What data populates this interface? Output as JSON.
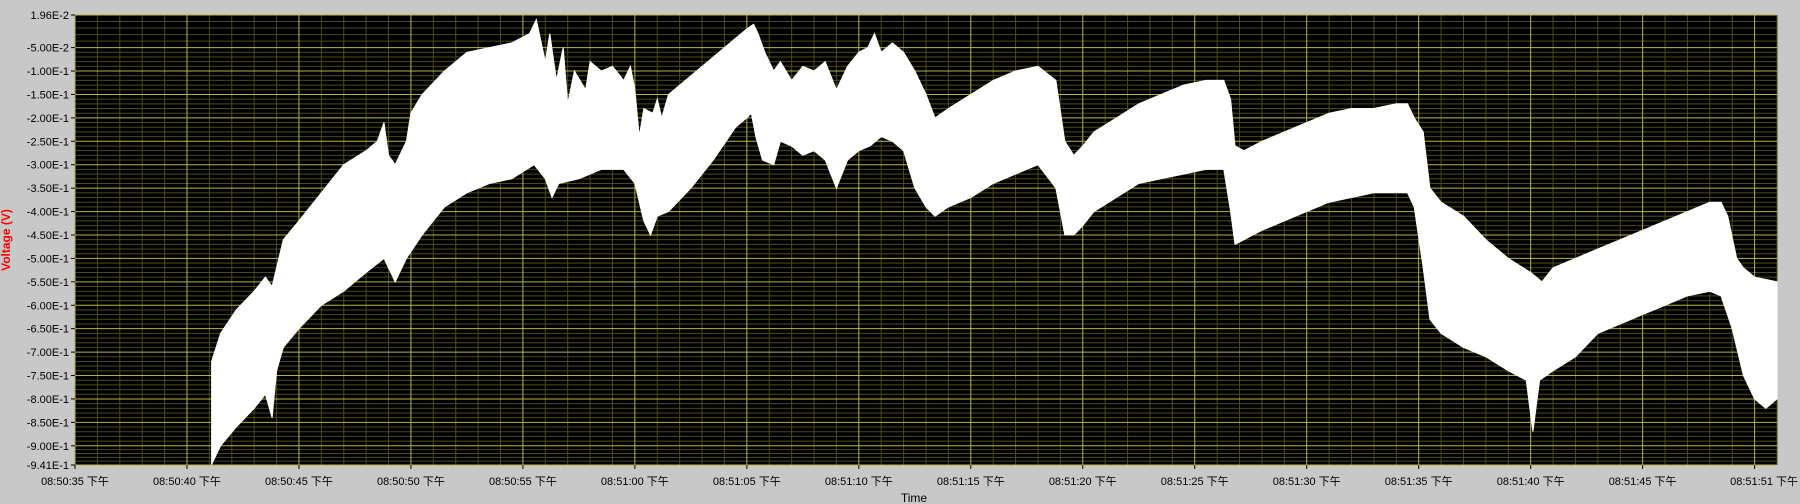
{
  "chart_data": {
    "type": "area",
    "title": "",
    "xlabel": "Time",
    "ylabel": "Voltage (V)",
    "ylim": [
      -0.941,
      0.0196
    ],
    "xlim_seconds_from_first_tick": [
      0,
      76
    ],
    "grid": true,
    "legend": "none",
    "colors": {
      "plot_background": "#000000",
      "frame_background": "#c8c8c8",
      "grid_major": "#b5b545",
      "grid_minor": "#4a4a1c",
      "signal": "#ffffff",
      "ylabel": "#ff0000",
      "tick_text": "#000000"
    },
    "y_ticks": [
      "1.96E-2",
      "-5.00E-2",
      "-1.00E-1",
      "-1.50E-1",
      "-2.00E-1",
      "-2.50E-1",
      "-3.00E-1",
      "-3.50E-1",
      "-4.00E-1",
      "-4.50E-1",
      "-5.00E-1",
      "-5.50E-1",
      "-6.00E-1",
      "-6.50E-1",
      "-7.00E-1",
      "-7.50E-1",
      "-8.00E-1",
      "-8.50E-1",
      "-9.00E-1",
      "-9.41E-1"
    ],
    "y_tick_values": [
      0.0196,
      -0.05,
      -0.1,
      -0.15,
      -0.2,
      -0.25,
      -0.3,
      -0.35,
      -0.4,
      -0.45,
      -0.5,
      -0.55,
      -0.6,
      -0.65,
      -0.7,
      -0.75,
      -0.8,
      -0.85,
      -0.9,
      -0.941
    ],
    "x_ticks": [
      "08:50:35 下午",
      "08:50:40 下午",
      "08:50:45 下午",
      "08:50:50 下午",
      "08:50:55 下午",
      "08:51:00 下午",
      "08:51:05 下午",
      "08:51:10 下午",
      "08:51:15 下午",
      "08:51:20 下午",
      "08:51:25 下午",
      "08:51:30 下午",
      "08:51:35 下午",
      "08:51:40 下午",
      "08:51:45 下午",
      "08:51:51 下午"
    ],
    "x_tick_seconds": [
      0,
      5,
      10,
      15,
      20,
      25,
      30,
      35,
      40,
      45,
      50,
      55,
      60,
      65,
      70,
      75
    ],
    "upper_envelope": [
      [
        6.1,
        -0.72
      ],
      [
        6.5,
        -0.66
      ],
      [
        7.2,
        -0.61
      ],
      [
        8.0,
        -0.57
      ],
      [
        8.5,
        -0.54
      ],
      [
        8.8,
        -0.56
      ],
      [
        9.0,
        -0.52
      ],
      [
        9.3,
        -0.46
      ],
      [
        10.0,
        -0.42
      ],
      [
        11.0,
        -0.36
      ],
      [
        12.0,
        -0.3
      ],
      [
        13.0,
        -0.27
      ],
      [
        13.5,
        -0.25
      ],
      [
        13.8,
        -0.21
      ],
      [
        14.0,
        -0.28
      ],
      [
        14.3,
        -0.3
      ],
      [
        14.8,
        -0.25
      ],
      [
        15.0,
        -0.19
      ],
      [
        15.5,
        -0.15
      ],
      [
        16.5,
        -0.1
      ],
      [
        17.5,
        -0.06
      ],
      [
        18.5,
        -0.05
      ],
      [
        19.5,
        -0.04
      ],
      [
        20.3,
        -0.02
      ],
      [
        20.6,
        0.01
      ],
      [
        21.0,
        -0.08
      ],
      [
        21.2,
        -0.02
      ],
      [
        21.5,
        -0.12
      ],
      [
        21.8,
        -0.05
      ],
      [
        22.0,
        -0.17
      ],
      [
        22.3,
        -0.1
      ],
      [
        22.8,
        -0.14
      ],
      [
        23.0,
        -0.08
      ],
      [
        23.5,
        -0.1
      ],
      [
        24.0,
        -0.09
      ],
      [
        24.5,
        -0.12
      ],
      [
        24.8,
        -0.09
      ],
      [
        25.0,
        -0.14
      ],
      [
        25.2,
        -0.24
      ],
      [
        25.4,
        -0.18
      ],
      [
        25.8,
        -0.19
      ],
      [
        26.0,
        -0.16
      ],
      [
        26.2,
        -0.2
      ],
      [
        26.5,
        -0.15
      ],
      [
        27.5,
        -0.11
      ],
      [
        28.5,
        -0.07
      ],
      [
        29.5,
        -0.03
      ],
      [
        30.0,
        -0.01
      ],
      [
        30.3,
        0.0
      ],
      [
        30.5,
        -0.02
      ],
      [
        30.8,
        -0.06
      ],
      [
        31.2,
        -0.1
      ],
      [
        31.5,
        -0.08
      ],
      [
        32.0,
        -0.12
      ],
      [
        32.5,
        -0.09
      ],
      [
        33.0,
        -0.1
      ],
      [
        33.5,
        -0.08
      ],
      [
        34.0,
        -0.14
      ],
      [
        34.5,
        -0.09
      ],
      [
        35.0,
        -0.06
      ],
      [
        35.4,
        -0.05
      ],
      [
        35.7,
        -0.02
      ],
      [
        36.0,
        -0.06
      ],
      [
        36.5,
        -0.04
      ],
      [
        37.0,
        -0.06
      ],
      [
        37.5,
        -0.1
      ],
      [
        38.0,
        -0.15
      ],
      [
        38.4,
        -0.2
      ],
      [
        39.0,
        -0.18
      ],
      [
        40.0,
        -0.15
      ],
      [
        41.0,
        -0.12
      ],
      [
        42.0,
        -0.1
      ],
      [
        43.0,
        -0.09
      ],
      [
        43.8,
        -0.12
      ],
      [
        44.2,
        -0.25
      ],
      [
        44.6,
        -0.28
      ],
      [
        45.0,
        -0.26
      ],
      [
        45.5,
        -0.23
      ],
      [
        46.5,
        -0.2
      ],
      [
        47.5,
        -0.17
      ],
      [
        48.5,
        -0.15
      ],
      [
        49.5,
        -0.13
      ],
      [
        50.5,
        -0.12
      ],
      [
        51.3,
        -0.12
      ],
      [
        51.6,
        -0.16
      ],
      [
        51.8,
        -0.26
      ],
      [
        52.2,
        -0.27
      ],
      [
        53.0,
        -0.25
      ],
      [
        54.0,
        -0.23
      ],
      [
        55.0,
        -0.21
      ],
      [
        56.0,
        -0.19
      ],
      [
        57.0,
        -0.18
      ],
      [
        58.0,
        -0.18
      ],
      [
        59.0,
        -0.17
      ],
      [
        59.5,
        -0.17
      ],
      [
        59.8,
        -0.2
      ],
      [
        60.2,
        -0.23
      ],
      [
        60.5,
        -0.35
      ],
      [
        61.0,
        -0.38
      ],
      [
        62.0,
        -0.41
      ],
      [
        63.0,
        -0.46
      ],
      [
        64.0,
        -0.5
      ],
      [
        65.0,
        -0.53
      ],
      [
        65.5,
        -0.55
      ],
      [
        66.0,
        -0.52
      ],
      [
        67.0,
        -0.5
      ],
      [
        68.0,
        -0.48
      ],
      [
        69.0,
        -0.46
      ],
      [
        70.0,
        -0.44
      ],
      [
        71.0,
        -0.42
      ],
      [
        72.0,
        -0.4
      ],
      [
        73.0,
        -0.38
      ],
      [
        73.5,
        -0.38
      ],
      [
        73.8,
        -0.41
      ],
      [
        74.2,
        -0.5
      ],
      [
        74.5,
        -0.52
      ],
      [
        75.0,
        -0.54
      ],
      [
        76.0,
        -0.55
      ]
    ],
    "lower_envelope": [
      [
        6.1,
        -0.94
      ],
      [
        6.5,
        -0.9
      ],
      [
        7.2,
        -0.86
      ],
      [
        8.0,
        -0.82
      ],
      [
        8.5,
        -0.79
      ],
      [
        8.8,
        -0.84
      ],
      [
        9.0,
        -0.74
      ],
      [
        9.3,
        -0.69
      ],
      [
        10.0,
        -0.65
      ],
      [
        11.0,
        -0.6
      ],
      [
        12.0,
        -0.57
      ],
      [
        13.0,
        -0.53
      ],
      [
        13.8,
        -0.5
      ],
      [
        14.3,
        -0.55
      ],
      [
        14.8,
        -0.5
      ],
      [
        15.5,
        -0.45
      ],
      [
        16.5,
        -0.39
      ],
      [
        17.5,
        -0.36
      ],
      [
        18.5,
        -0.34
      ],
      [
        19.5,
        -0.33
      ],
      [
        20.5,
        -0.3
      ],
      [
        21.0,
        -0.33
      ],
      [
        21.3,
        -0.37
      ],
      [
        21.6,
        -0.34
      ],
      [
        22.5,
        -0.33
      ],
      [
        23.5,
        -0.31
      ],
      [
        24.5,
        -0.31
      ],
      [
        25.0,
        -0.34
      ],
      [
        25.4,
        -0.42
      ],
      [
        25.7,
        -0.45
      ],
      [
        26.0,
        -0.41
      ],
      [
        26.5,
        -0.4
      ],
      [
        27.5,
        -0.35
      ],
      [
        28.5,
        -0.29
      ],
      [
        29.5,
        -0.22
      ],
      [
        30.0,
        -0.2
      ],
      [
        30.2,
        -0.19
      ],
      [
        30.4,
        -0.24
      ],
      [
        30.7,
        -0.29
      ],
      [
        31.2,
        -0.3
      ],
      [
        31.5,
        -0.25
      ],
      [
        32.0,
        -0.26
      ],
      [
        32.5,
        -0.28
      ],
      [
        33.0,
        -0.27
      ],
      [
        33.5,
        -0.29
      ],
      [
        34.0,
        -0.35
      ],
      [
        34.5,
        -0.29
      ],
      [
        35.0,
        -0.27
      ],
      [
        35.5,
        -0.26
      ],
      [
        36.0,
        -0.24
      ],
      [
        36.5,
        -0.25
      ],
      [
        37.0,
        -0.27
      ],
      [
        37.5,
        -0.35
      ],
      [
        38.0,
        -0.39
      ],
      [
        38.4,
        -0.41
      ],
      [
        39.0,
        -0.39
      ],
      [
        40.0,
        -0.37
      ],
      [
        41.0,
        -0.34
      ],
      [
        42.0,
        -0.32
      ],
      [
        43.0,
        -0.3
      ],
      [
        43.8,
        -0.35
      ],
      [
        44.2,
        -0.45
      ],
      [
        44.6,
        -0.45
      ],
      [
        45.0,
        -0.43
      ],
      [
        45.5,
        -0.4
      ],
      [
        46.5,
        -0.37
      ],
      [
        47.5,
        -0.34
      ],
      [
        48.5,
        -0.33
      ],
      [
        49.5,
        -0.32
      ],
      [
        50.5,
        -0.31
      ],
      [
        51.3,
        -0.31
      ],
      [
        51.6,
        -0.4
      ],
      [
        51.8,
        -0.47
      ],
      [
        52.2,
        -0.46
      ],
      [
        53.0,
        -0.44
      ],
      [
        54.0,
        -0.42
      ],
      [
        55.0,
        -0.4
      ],
      [
        56.0,
        -0.38
      ],
      [
        57.0,
        -0.37
      ],
      [
        58.0,
        -0.36
      ],
      [
        59.0,
        -0.36
      ],
      [
        59.5,
        -0.36
      ],
      [
        59.8,
        -0.39
      ],
      [
        60.2,
        -0.52
      ],
      [
        60.5,
        -0.63
      ],
      [
        61.0,
        -0.66
      ],
      [
        62.0,
        -0.69
      ],
      [
        63.0,
        -0.71
      ],
      [
        64.0,
        -0.74
      ],
      [
        64.8,
        -0.76
      ],
      [
        65.1,
        -0.87
      ],
      [
        65.4,
        -0.76
      ],
      [
        66.0,
        -0.74
      ],
      [
        67.0,
        -0.71
      ],
      [
        68.0,
        -0.66
      ],
      [
        69.0,
        -0.64
      ],
      [
        70.0,
        -0.62
      ],
      [
        71.0,
        -0.6
      ],
      [
        72.0,
        -0.58
      ],
      [
        73.0,
        -0.57
      ],
      [
        73.5,
        -0.58
      ],
      [
        74.0,
        -0.65
      ],
      [
        74.5,
        -0.75
      ],
      [
        75.0,
        -0.8
      ],
      [
        75.5,
        -0.82
      ],
      [
        76.0,
        -0.8
      ]
    ]
  }
}
